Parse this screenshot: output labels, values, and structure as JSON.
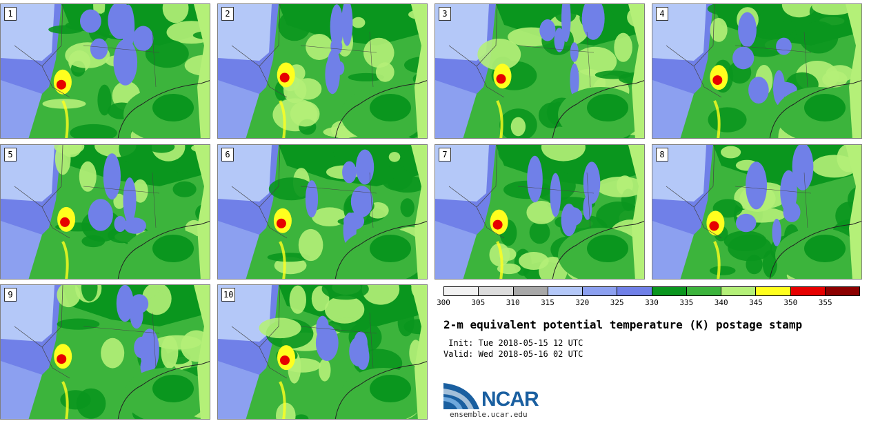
{
  "members": [
    {
      "label": "1"
    },
    {
      "label": "2"
    },
    {
      "label": "3"
    },
    {
      "label": "4"
    },
    {
      "label": "5"
    },
    {
      "label": "6"
    },
    {
      "label": "7"
    },
    {
      "label": "8"
    },
    {
      "label": "9"
    },
    {
      "label": "10"
    }
  ],
  "colorbar": {
    "ticks": [
      "300",
      "305",
      "310",
      "315",
      "320",
      "325",
      "330",
      "335",
      "340",
      "345",
      "350",
      "355"
    ],
    "colors": [
      "#f2f2f2",
      "#dcdcdc",
      "#a8a8a8",
      "#b4c8f8",
      "#8ca0f0",
      "#7080e8",
      "#0a961e",
      "#3cb43c",
      "#b4f078",
      "#ffff1e",
      "#e60000",
      "#8c0000"
    ]
  },
  "title": "2-m equivalent potential temperature (K) postage stamp",
  "init_line": " Init: Tue 2018-05-15 12 UTC",
  "valid_line": "Valid: Wed 2018-05-16 02 UTC",
  "logo": {
    "text": "NCAR",
    "url": "ensemble.ucar.edu"
  }
}
